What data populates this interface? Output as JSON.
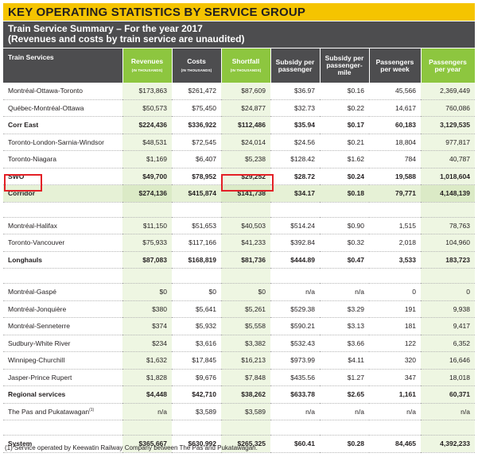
{
  "title": "KEY OPERATING STATISTICS BY SERVICE GROUP",
  "subtitle_line1": "Train Service Summary – For the year 2017",
  "subtitle_line2": "(Revenues and costs by train service are unaudited)",
  "colors": {
    "title_bar": "#f5c400",
    "header_dark": "#4d4d4f",
    "header_green": "#8dc63f",
    "highlight": "#e32026"
  },
  "headers": [
    {
      "label": "Train Services",
      "unit": ""
    },
    {
      "label": "Revenues",
      "unit": "(IN THOUSANDS)"
    },
    {
      "label": "Costs",
      "unit": "(IN THOUSANDS)"
    },
    {
      "label": "Shortfall",
      "unit": "(IN THOUSANDS)"
    },
    {
      "label": "Subsidy per passenger",
      "unit": ""
    },
    {
      "label": "Subsidy per passenger-mile",
      "unit": ""
    },
    {
      "label": "Passengers per week",
      "unit": ""
    },
    {
      "label": "Passengers per year",
      "unit": ""
    }
  ],
  "rows": [
    {
      "service": "Montréal-Ottawa-Toronto",
      "revenues": "$173,863",
      "costs": "$261,472",
      "shortfall": "$87,609",
      "subsidy_passenger": "$36.97",
      "subsidy_mile": "$0.16",
      "per_week": "45,566",
      "per_year": "2,369,449"
    },
    {
      "service": "Québec-Montréal-Ottawa",
      "revenues": "$50,573",
      "costs": "$75,450",
      "shortfall": "$24,877",
      "subsidy_passenger": "$32.73",
      "subsidy_mile": "$0.22",
      "per_week": "14,617",
      "per_year": "760,086"
    },
    {
      "service": "Corr East",
      "revenues": "$224,436",
      "costs": "$336,922",
      "shortfall": "$112,486",
      "subsidy_passenger": "$35.94",
      "subsidy_mile": "$0.17",
      "per_week": "60,183",
      "per_year": "3,129,535"
    },
    {
      "service": "Toronto-London-Sarnia-Windsor",
      "revenues": "$48,531",
      "costs": "$72,545",
      "shortfall": "$24,014",
      "subsidy_passenger": "$24.56",
      "subsidy_mile": "$0.21",
      "per_week": "18,804",
      "per_year": "977,817"
    },
    {
      "service": "Toronto-Niagara",
      "revenues": "$1,169",
      "costs": "$6,407",
      "shortfall": "$5,238",
      "subsidy_passenger": "$128.42",
      "subsidy_mile": "$1.62",
      "per_week": "784",
      "per_year": "40,787"
    },
    {
      "service": "SWO",
      "revenues": "$49,700",
      "costs": "$78,952",
      "shortfall": "$29,252",
      "subsidy_passenger": "$28.72",
      "subsidy_mile": "$0.24",
      "per_week": "19,588",
      "per_year": "1,018,604"
    },
    {
      "service": "Corridor",
      "revenues": "$274,136",
      "costs": "$415,874",
      "shortfall": "$141,738",
      "subsidy_passenger": "$34.17",
      "subsidy_mile": "$0.18",
      "per_week": "79,771",
      "per_year": "4,148,139"
    },
    {
      "service": "Montréal-Halifax",
      "revenues": "$11,150",
      "costs": "$51,653",
      "shortfall": "$40,503",
      "subsidy_passenger": "$514.24",
      "subsidy_mile": "$0.90",
      "per_week": "1,515",
      "per_year": "78,763"
    },
    {
      "service": "Toronto-Vancouver",
      "revenues": "$75,933",
      "costs": "$117,166",
      "shortfall": "$41,233",
      "subsidy_passenger": "$392.84",
      "subsidy_mile": "$0.32",
      "per_week": "2,018",
      "per_year": "104,960"
    },
    {
      "service": "Longhauls",
      "revenues": "$87,083",
      "costs": "$168,819",
      "shortfall": "$81,736",
      "subsidy_passenger": "$444.89",
      "subsidy_mile": "$0.47",
      "per_week": "3,533",
      "per_year": "183,723"
    },
    {
      "service": "Montréal-Gaspé",
      "revenues": "$0",
      "costs": "$0",
      "shortfall": "$0",
      "subsidy_passenger": "n/a",
      "subsidy_mile": "n/a",
      "per_week": "0",
      "per_year": "0"
    },
    {
      "service": "Montréal-Jonquière",
      "revenues": "$380",
      "costs": "$5,641",
      "shortfall": "$5,261",
      "subsidy_passenger": "$529.38",
      "subsidy_mile": "$3.29",
      "per_week": "191",
      "per_year": "9,938"
    },
    {
      "service": "Montréal-Senneterre",
      "revenues": "$374",
      "costs": "$5,932",
      "shortfall": "$5,558",
      "subsidy_passenger": "$590.21",
      "subsidy_mile": "$3.13",
      "per_week": "181",
      "per_year": "9,417"
    },
    {
      "service": "Sudbury-White River",
      "revenues": "$234",
      "costs": "$3,616",
      "shortfall": "$3,382",
      "subsidy_passenger": "$532.43",
      "subsidy_mile": "$3.66",
      "per_week": "122",
      "per_year": "6,352"
    },
    {
      "service": "Winnipeg-Churchill",
      "revenues": "$1,632",
      "costs": "$17,845",
      "shortfall": "$16,213",
      "subsidy_passenger": "$973.99",
      "subsidy_mile": "$4.11",
      "per_week": "320",
      "per_year": "16,646"
    },
    {
      "service": "Jasper-Prince Rupert",
      "revenues": "$1,828",
      "costs": "$9,676",
      "shortfall": "$7,848",
      "subsidy_passenger": "$435.56",
      "subsidy_mile": "$1.27",
      "per_week": "347",
      "per_year": "18,018"
    },
    {
      "service": "Regional services",
      "revenues": "$4,448",
      "costs": "$42,710",
      "shortfall": "$38,262",
      "subsidy_passenger": "$633.78",
      "subsidy_mile": "$2.65",
      "per_week": "1,161",
      "per_year": "60,371"
    },
    {
      "service": "The Pas and Pukatawagan",
      "service_sup": "(1)",
      "revenues": "n/a",
      "costs": "$3,589",
      "shortfall": "$3,589",
      "subsidy_passenger": "n/a",
      "subsidy_mile": "n/a",
      "per_week": "n/a",
      "per_year": "n/a"
    },
    {
      "service": "System",
      "revenues": "$365,667",
      "costs": "$630,992",
      "shortfall": "$265,325",
      "subsidy_passenger": "$60.41",
      "subsidy_mile": "$0.28",
      "per_week": "84,465",
      "per_year": "4,392,233"
    }
  ],
  "footnote": "(1)  Service operated by Keewatin Railway Company between The Pas and Pukatawagan."
}
